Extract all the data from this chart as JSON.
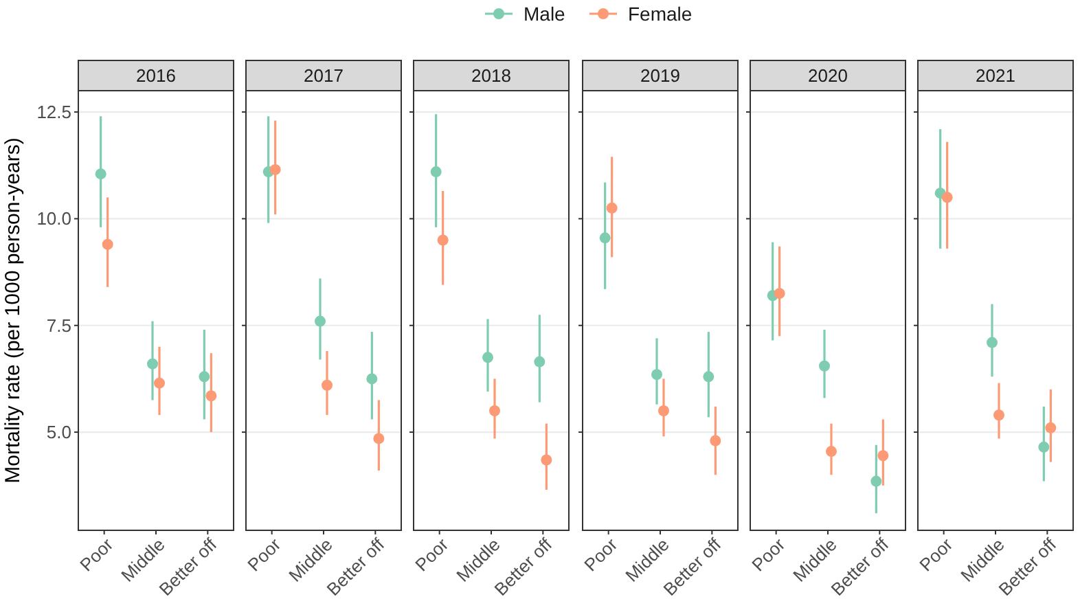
{
  "chart_data": [
    {
      "type": "scatter",
      "title": "2016",
      "ylabel": "Mortality rate (per 1000 person-years)",
      "categories": [
        "Poor",
        "Middle",
        "Better off"
      ],
      "ylim": [
        2.7,
        13.0
      ],
      "yticks": [
        {
          "value": 5,
          "label": "5.0"
        },
        {
          "value": 7.5,
          "label": "7.5"
        },
        {
          "value": 10,
          "label": "10.0"
        },
        {
          "value": 12.5,
          "label": "12.5"
        }
      ],
      "grid": "y",
      "legend": "top",
      "marker": "circle",
      "series": [
        {
          "name": "Male",
          "color": "#7fcdb0",
          "values": [
            11.05,
            6.6,
            6.3
          ],
          "errors": [
            [
              9.8,
              12.4
            ],
            [
              5.75,
              7.6
            ],
            [
              5.3,
              7.4
            ]
          ]
        },
        {
          "name": "Female",
          "color": "#fb9a74",
          "values": [
            9.4,
            6.15,
            5.85
          ],
          "errors": [
            [
              8.4,
              10.5
            ],
            [
              5.4,
              7.0
            ],
            [
              5.0,
              6.85
            ]
          ]
        }
      ]
    },
    {
      "type": "scatter",
      "title": "2017",
      "categories": [
        "Poor",
        "Middle",
        "Better off"
      ],
      "ylim": [
        2.7,
        13.0
      ],
      "yticks": [
        {
          "value": 5,
          "label": null
        },
        {
          "value": 7.5,
          "label": null
        },
        {
          "value": 10,
          "label": null
        },
        {
          "value": 12.5,
          "label": null
        }
      ],
      "grid": "y",
      "tick_labels": "x",
      "marker": "circle",
      "series": [
        {
          "name": "Male",
          "color": "#7fcdb0",
          "values": [
            11.1,
            7.6,
            6.25
          ],
          "errors": [
            [
              9.9,
              12.4
            ],
            [
              6.7,
              8.6
            ],
            [
              5.3,
              7.35
            ]
          ]
        },
        {
          "name": "Female",
          "color": "#fb9a74",
          "values": [
            11.15,
            6.1,
            4.85
          ],
          "errors": [
            [
              10.1,
              12.3
            ],
            [
              5.4,
              6.9
            ],
            [
              4.1,
              5.75
            ]
          ]
        }
      ]
    },
    {
      "type": "scatter",
      "title": "2018",
      "categories": [
        "Poor",
        "Middle",
        "Better off"
      ],
      "ylim": [
        2.7,
        13.0
      ],
      "yticks": [
        {
          "value": 5,
          "label": null
        },
        {
          "value": 7.5,
          "label": null
        },
        {
          "value": 10,
          "label": null
        },
        {
          "value": 12.5,
          "label": null
        }
      ],
      "grid": "y",
      "tick_labels": "x",
      "marker": "circle",
      "series": [
        {
          "name": "Male",
          "color": "#7fcdb0",
          "values": [
            11.1,
            6.75,
            6.65
          ],
          "errors": [
            [
              9.8,
              12.45
            ],
            [
              5.95,
              7.65
            ],
            [
              5.7,
              7.75
            ]
          ]
        },
        {
          "name": "Female",
          "color": "#fb9a74",
          "values": [
            9.5,
            5.5,
            4.35
          ],
          "errors": [
            [
              8.45,
              10.65
            ],
            [
              4.85,
              6.25
            ],
            [
              3.65,
              5.2
            ]
          ]
        }
      ]
    },
    {
      "type": "scatter",
      "title": "2019",
      "categories": [
        "Poor",
        "Middle",
        "Better off"
      ],
      "ylim": [
        2.7,
        13.0
      ],
      "yticks": [
        {
          "value": 5,
          "label": null
        },
        {
          "value": 7.5,
          "label": null
        },
        {
          "value": 10,
          "label": null
        },
        {
          "value": 12.5,
          "label": null
        }
      ],
      "grid": "y",
      "tick_labels": "x",
      "marker": "circle",
      "series": [
        {
          "name": "Male",
          "color": "#7fcdb0",
          "values": [
            9.55,
            6.35,
            6.3
          ],
          "errors": [
            [
              8.35,
              10.85
            ],
            [
              5.65,
              7.2
            ],
            [
              5.35,
              7.35
            ]
          ]
        },
        {
          "name": "Female",
          "color": "#fb9a74",
          "values": [
            10.25,
            5.5,
            4.8
          ],
          "errors": [
            [
              9.1,
              11.45
            ],
            [
              4.9,
              6.25
            ],
            [
              4.0,
              5.6
            ]
          ]
        }
      ]
    },
    {
      "type": "scatter",
      "title": "2020",
      "categories": [
        "Poor",
        "Middle",
        "Better off"
      ],
      "ylim": [
        2.7,
        13.0
      ],
      "yticks": [
        {
          "value": 5,
          "label": null
        },
        {
          "value": 7.5,
          "label": null
        },
        {
          "value": 10,
          "label": null
        },
        {
          "value": 12.5,
          "label": null
        }
      ],
      "grid": "y",
      "tick_labels": "x",
      "marker": "circle",
      "series": [
        {
          "name": "Male",
          "color": "#7fcdb0",
          "values": [
            8.2,
            6.55,
            3.85
          ],
          "errors": [
            [
              7.15,
              9.45
            ],
            [
              5.8,
              7.4
            ],
            [
              3.1,
              4.7
            ]
          ]
        },
        {
          "name": "Female",
          "color": "#fb9a74",
          "values": [
            8.25,
            4.55,
            4.45
          ],
          "errors": [
            [
              7.25,
              9.35
            ],
            [
              4.0,
              5.2
            ],
            [
              3.75,
              5.3
            ]
          ]
        }
      ]
    },
    {
      "type": "scatter",
      "title": "2021",
      "categories": [
        "Poor",
        "Middle",
        "Better off"
      ],
      "ylim": [
        2.7,
        13.0
      ],
      "yticks": [
        {
          "value": 5,
          "label": null
        },
        {
          "value": 7.5,
          "label": null
        },
        {
          "value": 10,
          "label": null
        },
        {
          "value": 12.5,
          "label": null
        }
      ],
      "grid": "y",
      "tick_labels": "x",
      "marker": "circle",
      "series": [
        {
          "name": "Male",
          "color": "#7fcdb0",
          "values": [
            10.6,
            7.1,
            4.65
          ],
          "errors": [
            [
              9.3,
              12.1
            ],
            [
              6.3,
              8.0
            ],
            [
              3.85,
              5.6
            ]
          ]
        },
        {
          "name": "Female",
          "color": "#fb9a74",
          "values": [
            10.5,
            5.4,
            5.1
          ],
          "errors": [
            [
              9.3,
              11.8
            ],
            [
              4.85,
              6.15
            ],
            [
              4.3,
              6.0
            ]
          ]
        }
      ]
    }
  ]
}
